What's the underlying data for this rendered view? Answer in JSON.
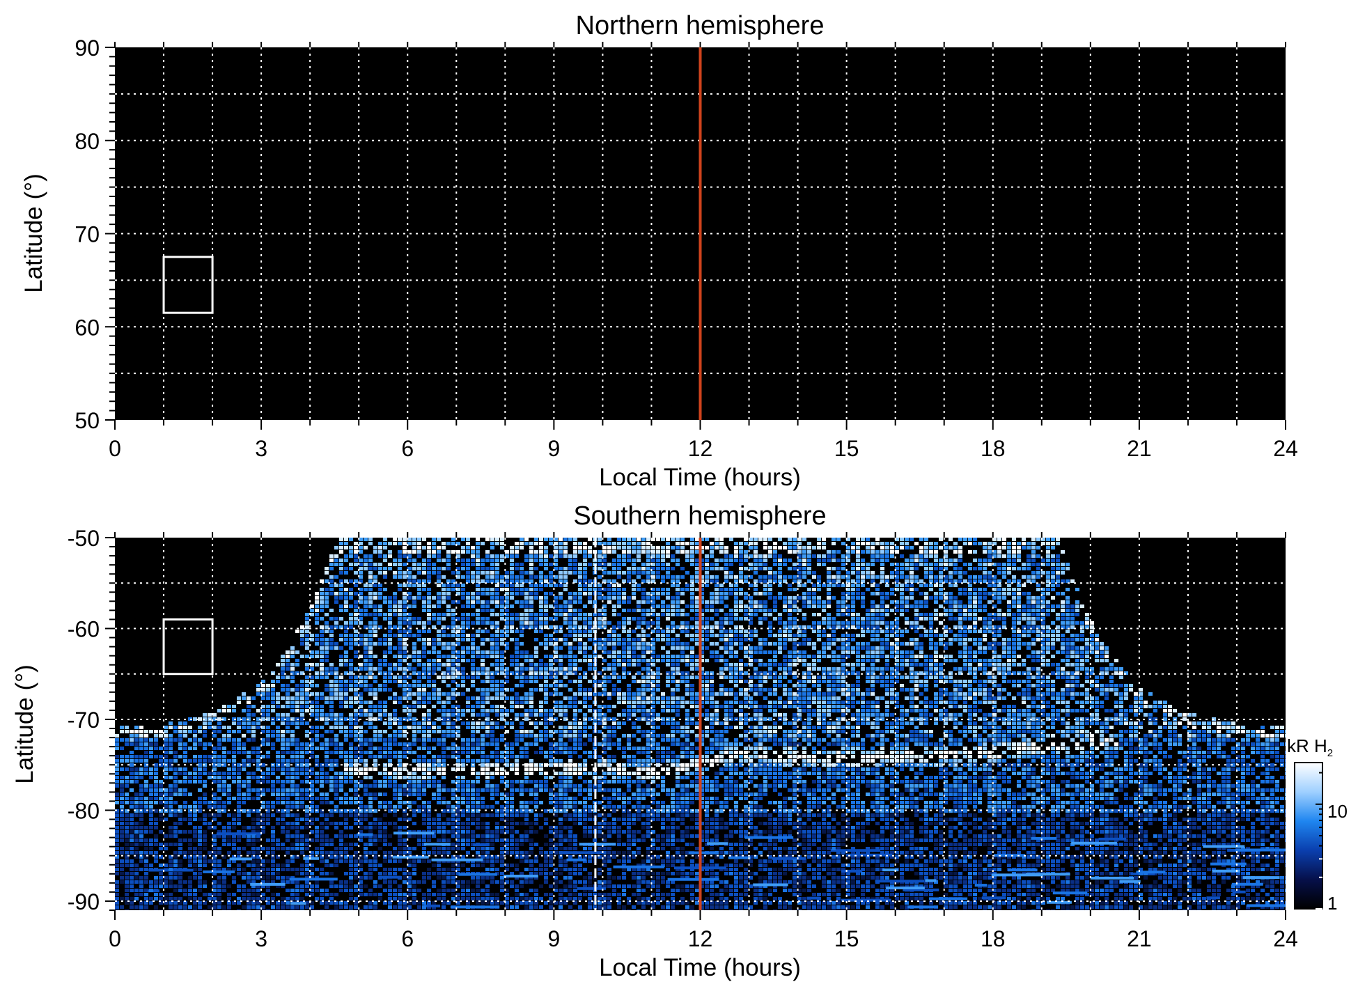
{
  "chart_data": [
    {
      "type": "heatmap",
      "title": "Northern hemisphere",
      "xlabel": "Local Time (hours)",
      "ylabel": "Latitude (°)",
      "xlim": [
        0,
        24
      ],
      "ylim": [
        50,
        90
      ],
      "xticks": [
        "0",
        "3",
        "6",
        "9",
        "12",
        "15",
        "18",
        "21",
        "24"
      ],
      "yticks": [
        "50",
        "60",
        "70",
        "80",
        "90"
      ],
      "grid": true,
      "marker_line_x": 12,
      "marker_line_color": "#d0431c",
      "box": {
        "x": [
          1,
          2
        ],
        "y": [
          61.5,
          67.5
        ]
      },
      "coverage": "none",
      "background": "#000000"
    },
    {
      "type": "heatmap",
      "title": "Southern hemisphere",
      "xlabel": "Local Time (hours)",
      "ylabel": "Latitude (°)",
      "xlim": [
        0,
        24
      ],
      "ylim": [
        -91,
        -50
      ],
      "xticks": [
        "0",
        "3",
        "6",
        "9",
        "12",
        "15",
        "18",
        "21",
        "24"
      ],
      "yticks": [
        "-90",
        "-80",
        "-70",
        "-60",
        "-50"
      ],
      "grid": true,
      "marker_line_x": 12,
      "marker_line_color": "#d0431c",
      "dashed_line_x": 9.85,
      "box": {
        "x": [
          1,
          2
        ],
        "y": [
          -65,
          -59
        ]
      },
      "coverage_edge": [
        [
          0,
          -70.7
        ],
        [
          1,
          -70.3
        ],
        [
          2,
          -69
        ],
        [
          3,
          -65.5
        ],
        [
          3.5,
          -62
        ],
        [
          4,
          -57
        ],
        [
          4.5,
          -50
        ],
        [
          19.3,
          -50
        ],
        [
          19.8,
          -57
        ],
        [
          20.3,
          -62
        ],
        [
          20.8,
          -65.5
        ],
        [
          21.8,
          -69
        ],
        [
          23,
          -70.3
        ],
        [
          24,
          -70.7
        ]
      ],
      "auroral_oval": [
        [
          4.5,
          -75.2
        ],
        [
          6,
          -75.4
        ],
        [
          7.5,
          -75.5
        ],
        [
          8.5,
          -75.2
        ],
        [
          10,
          -75.2
        ],
        [
          11,
          -75.6
        ],
        [
          12,
          -74.6
        ],
        [
          12.8,
          -73.5
        ],
        [
          13.5,
          -73.8
        ],
        [
          14.5,
          -74.1
        ],
        [
          16,
          -73.9
        ],
        [
          17.5,
          -73.6
        ],
        [
          18.5,
          -73.2
        ],
        [
          19.5,
          -72.6
        ],
        [
          20.5,
          -72.3
        ]
      ],
      "colorbar": {
        "label_main": "kR H",
        "label_sub": "2",
        "ticks": [
          "1",
          "10"
        ],
        "scale": "log",
        "colors": [
          "#000000",
          "#06104a",
          "#0a3fae",
          "#1f86f0",
          "#9fd0ff",
          "#ffffff"
        ]
      }
    }
  ]
}
